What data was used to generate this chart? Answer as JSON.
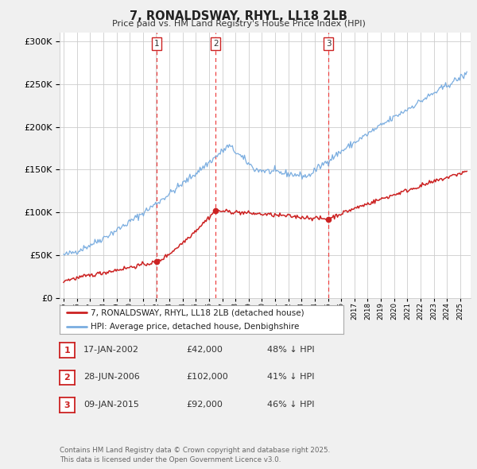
{
  "title": "7, RONALDSWAY, RHYL, LL18 2LB",
  "subtitle": "Price paid vs. HM Land Registry's House Price Index (HPI)",
  "ylim": [
    0,
    310000
  ],
  "yticks": [
    0,
    50000,
    100000,
    150000,
    200000,
    250000,
    300000
  ],
  "bg_color": "#f0f0f0",
  "plot_bg_color": "#ffffff",
  "grid_color": "#cccccc",
  "red_color": "#cc2222",
  "blue_color": "#7aade0",
  "transaction_dates": [
    2002.04,
    2006.49,
    2015.03
  ],
  "transaction_prices": [
    42000,
    102000,
    92000
  ],
  "transaction_labels": [
    "1",
    "2",
    "3"
  ],
  "legend_entries": [
    "7, RONALDSWAY, RHYL, LL18 2LB (detached house)",
    "HPI: Average price, detached house, Denbighshire"
  ],
  "table_rows": [
    [
      "1",
      "17-JAN-2002",
      "£42,000",
      "48% ↓ HPI"
    ],
    [
      "2",
      "28-JUN-2006",
      "£102,000",
      "41% ↓ HPI"
    ],
    [
      "3",
      "09-JAN-2015",
      "£92,000",
      "46% ↓ HPI"
    ]
  ],
  "footer": "Contains HM Land Registry data © Crown copyright and database right 2025.\nThis data is licensed under the Open Government Licence v3.0."
}
